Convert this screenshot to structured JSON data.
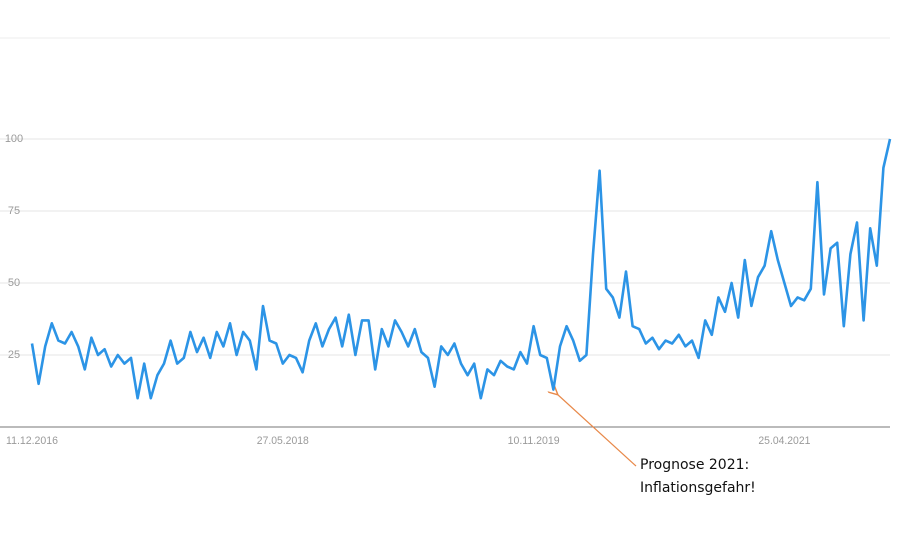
{
  "chart_data": {
    "type": "line",
    "categories": [
      "11.12.2016",
      null,
      null,
      null,
      null,
      null,
      null,
      null,
      null,
      null,
      null,
      null,
      null,
      null,
      null,
      null,
      null,
      null,
      null,
      null,
      null,
      null,
      null,
      null,
      null,
      null,
      null,
      null,
      null,
      null,
      null,
      null,
      null,
      null,
      null,
      null,
      null,
      null,
      "27.05.2018",
      null,
      null,
      null,
      null,
      null,
      null,
      null,
      null,
      null,
      null,
      null,
      null,
      null,
      null,
      null,
      null,
      null,
      null,
      null,
      null,
      null,
      null,
      null,
      null,
      null,
      null,
      null,
      null,
      null,
      null,
      null,
      null,
      null,
      null,
      null,
      null,
      null,
      "10.11.2019",
      null,
      null,
      null,
      null,
      null,
      null,
      null,
      null,
      null,
      null,
      null,
      null,
      null,
      null,
      null,
      null,
      null,
      null,
      null,
      null,
      null,
      null,
      null,
      null,
      null,
      null,
      null,
      null,
      null,
      null,
      null,
      null,
      null,
      null,
      null,
      null,
      null,
      "25.04.2021",
      null,
      null,
      null,
      null,
      null,
      null,
      null,
      null,
      null,
      null,
      null,
      null,
      null,
      null,
      null,
      null
    ],
    "series": [
      {
        "color": "#2c94e6",
        "values": [
          29,
          15,
          28,
          36,
          30,
          29,
          33,
          28,
          20,
          31,
          25,
          27,
          21,
          25,
          22,
          24,
          10,
          22,
          10,
          18,
          22,
          30,
          22,
          24,
          33,
          26,
          31,
          24,
          33,
          28,
          36,
          25,
          33,
          30,
          20,
          42,
          30,
          29,
          22,
          25,
          24,
          19,
          30,
          36,
          28,
          34,
          38,
          28,
          39,
          25,
          37,
          37,
          20,
          34,
          28,
          37,
          33,
          28,
          34,
          26,
          24,
          14,
          28,
          25,
          29,
          22,
          18,
          22,
          10,
          20,
          18,
          23,
          21,
          20,
          26,
          22,
          35,
          25,
          24,
          13,
          28,
          35,
          30,
          23,
          25,
          60,
          89,
          48,
          45,
          38,
          54,
          35,
          34,
          29,
          31,
          27,
          30,
          29,
          32,
          28,
          30,
          24,
          37,
          32,
          45,
          40,
          50,
          38,
          58,
          42,
          52,
          56,
          68,
          58,
          50,
          42,
          45,
          44,
          48,
          85,
          46,
          62,
          64,
          35,
          60,
          71,
          37,
          69,
          56,
          90,
          100
        ]
      }
    ],
    "ylim": [
      0,
      100
    ],
    "yticks": [
      25,
      50,
      75,
      100
    ],
    "grid": true,
    "annotation": [
      "Prognose 2021:",
      "Inflationsgefahr!"
    ]
  }
}
